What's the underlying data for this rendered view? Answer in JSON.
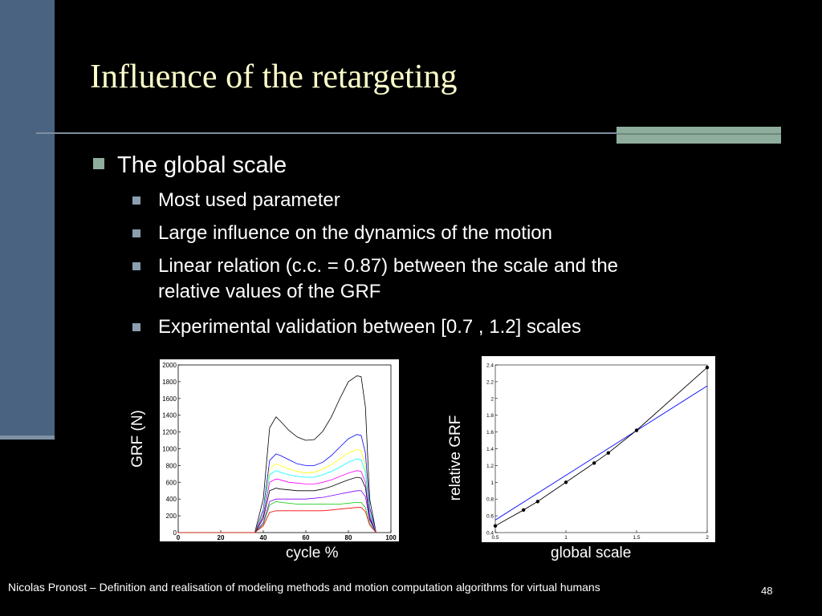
{
  "slide": {
    "title": "Influence of the retargeting",
    "bullet_main": "The global scale",
    "sub_bullets": [
      "Most used parameter",
      "Large influence on the dynamics of the motion",
      "Linear relation (c.c. = 0.87) between the scale and the",
      "relative values of the GRF",
      "Experimental validation between [0.7 , 1.2] scales"
    ],
    "footer": "Nicolas Pronost – Definition and realisation of modeling methods and motion computation algorithms for virtual humans",
    "page_number": "48",
    "colors": {
      "background": "#000000",
      "title": "#ffffcc",
      "left_bar": "#4a6380",
      "accent_block": "#8fad9c"
    }
  },
  "chart_data": [
    {
      "type": "line",
      "xlabel": "cycle %",
      "ylabel": "GRF (N)",
      "xlim": [
        0,
        100
      ],
      "ylim": [
        0,
        2000
      ],
      "x_ticks": [
        0,
        20,
        40,
        60,
        80,
        100
      ],
      "y_ticks": [
        0,
        200,
        400,
        600,
        800,
        1000,
        1200,
        1400,
        1600,
        1800,
        2000
      ],
      "grid": false,
      "x": [
        0,
        30,
        36,
        40,
        43,
        46,
        48,
        52,
        56,
        60,
        64,
        68,
        72,
        76,
        80,
        84,
        86,
        88,
        90,
        93
      ],
      "series": [
        {
          "color": "#000000",
          "values": [
            0,
            0,
            0,
            400,
            1250,
            1380,
            1330,
            1220,
            1140,
            1100,
            1110,
            1210,
            1380,
            1600,
            1800,
            1870,
            1860,
            1500,
            400,
            0
          ]
        },
        {
          "color": "#0000ff",
          "values": [
            0,
            0,
            0,
            270,
            860,
            940,
            920,
            870,
            820,
            800,
            800,
            840,
            920,
            1020,
            1120,
            1170,
            1160,
            950,
            300,
            0
          ]
        },
        {
          "color": "#ffff00",
          "values": [
            0,
            0,
            0,
            240,
            760,
            820,
            800,
            760,
            730,
            710,
            720,
            760,
            810,
            880,
            950,
            990,
            980,
            800,
            250,
            0
          ]
        },
        {
          "color": "#00ffff",
          "values": [
            0,
            0,
            0,
            220,
            690,
            740,
            720,
            690,
            670,
            660,
            660,
            690,
            730,
            780,
            840,
            880,
            870,
            720,
            230,
            0
          ]
        },
        {
          "color": "#ff00ff",
          "values": [
            0,
            0,
            0,
            200,
            600,
            640,
            630,
            600,
            590,
            580,
            580,
            600,
            630,
            670,
            710,
            740,
            730,
            600,
            200,
            0
          ]
        },
        {
          "color": "#000000",
          "values": [
            0,
            0,
            0,
            170,
            500,
            530,
            520,
            510,
            500,
            500,
            500,
            520,
            550,
            590,
            630,
            660,
            650,
            540,
            170,
            0
          ]
        },
        {
          "color": "#8000ff",
          "values": [
            0,
            0,
            0,
            120,
            370,
            400,
            400,
            400,
            400,
            400,
            410,
            420,
            440,
            460,
            480,
            500,
            500,
            430,
            150,
            0
          ]
        },
        {
          "color": "#00cc00",
          "values": [
            0,
            0,
            0,
            100,
            330,
            370,
            360,
            350,
            340,
            340,
            340,
            340,
            340,
            340,
            350,
            360,
            360,
            300,
            110,
            0
          ]
        },
        {
          "color": "#ff0000",
          "values": [
            0,
            0,
            0,
            80,
            240,
            260,
            260,
            260,
            260,
            260,
            260,
            260,
            270,
            280,
            290,
            300,
            300,
            250,
            90,
            0
          ]
        }
      ]
    },
    {
      "type": "scatter",
      "xlabel": "global scale",
      "ylabel": "relative GRF",
      "xlim": [
        0.5,
        2
      ],
      "ylim": [
        0.4,
        2.4
      ],
      "x_ticks": [
        0.5,
        1,
        1.5,
        2
      ],
      "x_tick_labels": [
        "0.5",
        "1",
        "1.5",
        "2"
      ],
      "y_ticks": [
        0.4,
        0.6,
        0.8,
        1,
        1.2,
        1.4,
        1.6,
        1.8,
        2,
        2.2,
        2.4
      ],
      "y_tick_labels": [
        "0.4",
        "0.6",
        "0.8",
        "1",
        "1.2",
        "1.4",
        "1.6",
        "1.8",
        "2",
        "2.2",
        "2.4"
      ],
      "grid": false,
      "points": {
        "color": "#000000",
        "x": [
          0.5,
          0.7,
          0.8,
          1.0,
          1.2,
          1.3,
          1.5,
          2.0
        ],
        "y": [
          0.48,
          0.67,
          0.77,
          1.0,
          1.23,
          1.35,
          1.62,
          2.37
        ]
      },
      "fit_line": {
        "color": "#0000ff",
        "x": [
          0.5,
          2.0
        ],
        "y": [
          0.55,
          2.15
        ]
      }
    }
  ]
}
